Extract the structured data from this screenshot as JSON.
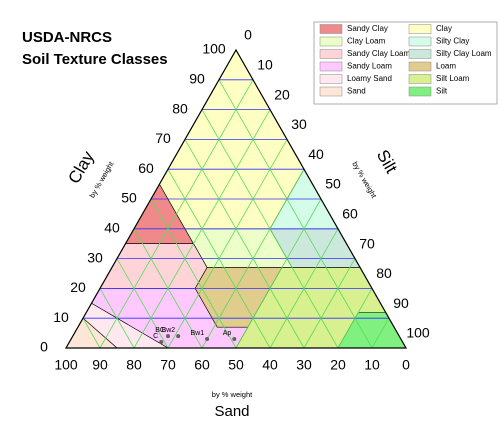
{
  "chart_data": {
    "type": "ternary",
    "title": [
      "USDA-NRCS",
      "Soil Texture Classes"
    ],
    "axes": {
      "clay": {
        "title": "Clay",
        "subtitle": "by % weight",
        "color": "#0000ff",
        "grid_color": "#3030ff",
        "ticks": [
          0,
          10,
          20,
          30,
          40,
          50,
          60,
          70,
          80,
          90,
          100
        ]
      },
      "silt": {
        "title": "Silt",
        "subtitle": "by % weight",
        "color": "#33dd33",
        "grid_color": "#55dd55",
        "ticks": [
          0,
          10,
          20,
          30,
          40,
          50,
          60,
          70,
          80,
          90,
          100
        ]
      },
      "sand": {
        "title": "Sand",
        "subtitle": "by % weight",
        "color": "#ff2020",
        "grid_color": "#55dd55",
        "ticks": [
          0,
          10,
          20,
          30,
          40,
          50,
          60,
          70,
          80,
          90,
          100
        ]
      }
    },
    "regions": [
      {
        "name": "Sandy Clay",
        "color": "#f08a8a",
        "sand": [
          65,
          45,
          45
        ],
        "clay": [
          35,
          35,
          55
        ]
      },
      {
        "name": "Clay",
        "color": "#ffffc4",
        "sand": [
          45,
          45,
          0,
          0,
          20
        ],
        "clay": [
          40,
          55,
          100,
          60,
          40
        ]
      },
      {
        "name": "Clay Loam",
        "color": "#ecffc8",
        "sand": [
          45,
          20,
          20,
          45
        ],
        "clay": [
          27,
          27,
          40,
          40
        ]
      },
      {
        "name": "Silty Clay",
        "color": "#d4fce8",
        "sand": [
          20,
          0,
          0
        ],
        "clay": [
          40,
          40,
          60
        ]
      },
      {
        "name": "Sandy Clay Loam",
        "color": "#ffd4d8",
        "sand": [
          80,
          52,
          45,
          45,
          65
        ],
        "clay": [
          20,
          20,
          27,
          35,
          35
        ]
      },
      {
        "name": "Silty Clay Loam",
        "color": "#cce8dc",
        "sand": [
          20,
          0,
          0,
          20
        ],
        "clay": [
          27,
          27,
          40,
          40
        ]
      },
      {
        "name": "Sandy Loam",
        "color": "#ffc8ff",
        "sand": [
          80,
          85,
          70,
          50,
          43,
          52,
          52
        ],
        "clay": [
          20,
          15,
          0,
          0,
          7,
          7,
          20
        ]
      },
      {
        "name": "Loam",
        "color": "#e0cc8c",
        "sand": [
          52,
          52,
          45,
          23,
          43
        ],
        "clay": [
          7,
          20,
          27,
          27,
          7
        ]
      },
      {
        "name": "Loamy Sand",
        "color": "#ffe8f0",
        "sand": [
          85,
          70,
          85,
          90
        ],
        "clay": [
          0,
          0,
          15,
          10
        ]
      },
      {
        "name": "Silt Loam",
        "color": "#d8f090",
        "sand": [
          50,
          20,
          8,
          0,
          0,
          23,
          43
        ],
        "clay": [
          0,
          0,
          12,
          12,
          27,
          27,
          7
        ]
      },
      {
        "name": "Sand",
        "color": "#ffe6d6",
        "sand": [
          100,
          85,
          90
        ],
        "clay": [
          0,
          0,
          10
        ]
      },
      {
        "name": "Silt",
        "color": "#80f080",
        "sand": [
          20,
          0,
          0,
          8
        ],
        "clay": [
          0,
          0,
          12,
          12
        ]
      }
    ],
    "points": {
      "color": "#606060",
      "labels": [
        "BC",
        "Bw2",
        "C",
        "Bw1",
        "Ap"
      ],
      "sand": [
        68,
        65,
        71,
        57,
        49
      ],
      "clay": [
        4,
        4,
        2,
        3,
        3
      ]
    }
  }
}
